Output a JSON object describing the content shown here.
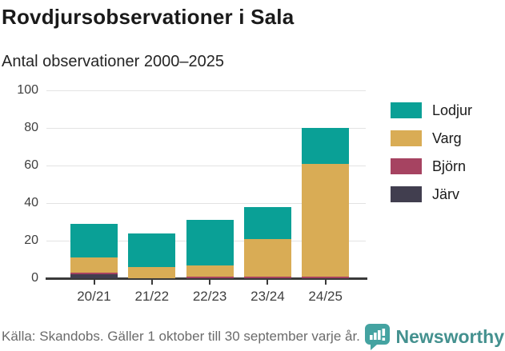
{
  "header": {
    "title": "Rovdjursobservationer i Sala",
    "subtitle": "Antal observationer 2000–2025"
  },
  "chart_data": {
    "type": "bar",
    "stacked": true,
    "title": "Rovdjursobservationer i Sala",
    "subtitle": "Antal observationer 2000–2025",
    "categories": [
      "20/21",
      "21/22",
      "22/23",
      "23/24",
      "24/25"
    ],
    "series": [
      {
        "name": "Järv",
        "color": "#413e4f",
        "values": [
          2,
          0,
          0,
          0,
          0
        ]
      },
      {
        "name": "Björn",
        "color": "#a64361",
        "values": [
          1,
          0,
          1,
          1,
          1
        ]
      },
      {
        "name": "Varg",
        "color": "#d9ac55",
        "values": [
          8,
          6,
          6,
          20,
          60
        ]
      },
      {
        "name": "Lodjur",
        "color": "#0aa096",
        "values": [
          18,
          18,
          24,
          17,
          19
        ]
      }
    ],
    "totals": [
      29,
      24,
      31,
      38,
      80
    ],
    "xlabel": "",
    "ylabel": "",
    "ylim": [
      0,
      100
    ],
    "yticks": [
      0,
      20,
      40,
      60,
      80,
      100
    ],
    "grid": true,
    "legend_position": "right",
    "legend_order": [
      "Lodjur",
      "Varg",
      "Björn",
      "Järv"
    ]
  },
  "colors": {
    "axis": "#3a3a3a",
    "gridline": "#e3e3e3",
    "brand_teal": "#44918f"
  },
  "footer": {
    "source": "Källa: Skandobs. Gäller 1 oktober till 30 september varje år.",
    "brand": "Newsworthy"
  }
}
